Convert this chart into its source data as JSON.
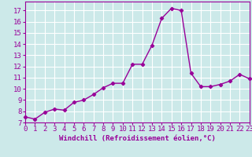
{
  "x": [
    0,
    1,
    2,
    3,
    4,
    5,
    6,
    7,
    8,
    9,
    10,
    11,
    12,
    13,
    14,
    15,
    16,
    17,
    18,
    19,
    20,
    21,
    22,
    23
  ],
  "y": [
    7.5,
    7.3,
    7.9,
    8.2,
    8.1,
    8.8,
    9.0,
    9.5,
    10.1,
    10.5,
    10.5,
    12.2,
    12.2,
    13.9,
    16.3,
    17.2,
    17.0,
    11.4,
    10.2,
    10.2,
    10.4,
    10.7,
    11.3,
    10.9
  ],
  "line_color": "#990099",
  "marker": "D",
  "marker_size": 2.2,
  "line_width": 1.0,
  "bg_color": "#cce9e9",
  "grid_color": "#ffffff",
  "xlabel": "Windchill (Refroidissement éolien,°C)",
  "xlabel_fontsize": 6.5,
  "tick_label_fontsize": 6.5,
  "ylim": [
    7,
    17.8
  ],
  "yticks": [
    7,
    8,
    9,
    10,
    11,
    12,
    13,
    14,
    15,
    16,
    17
  ],
  "xticks": [
    0,
    1,
    2,
    3,
    4,
    5,
    6,
    7,
    8,
    9,
    10,
    11,
    12,
    13,
    14,
    15,
    16,
    17,
    18,
    19,
    20,
    21,
    22,
    23
  ],
  "xlim": [
    0,
    23
  ]
}
